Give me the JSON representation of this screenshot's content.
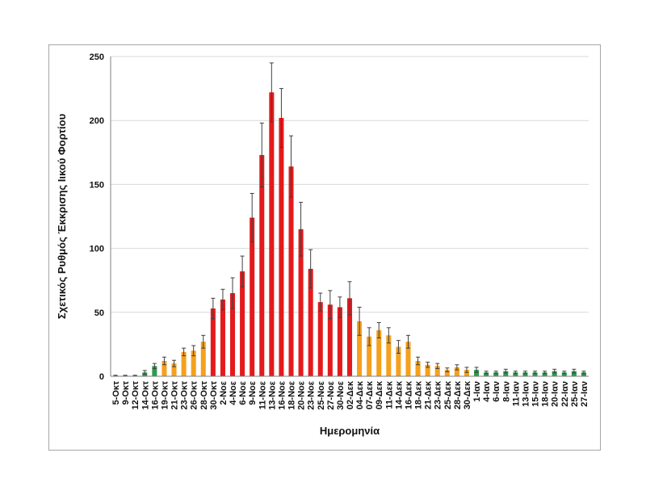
{
  "colors": {
    "low": "#2e9b4f",
    "medium": "#f5a01e",
    "high": "#e41a1c",
    "error": "#404040",
    "grid": "#d9d9d9"
  },
  "chart_data": {
    "type": "bar",
    "ylabel": "Σχετικός Ρυθμός Έκκρισης Ιικού Φορτίου",
    "xlabel": "Ημερομηνία",
    "ylim": [
      0,
      250
    ],
    "yticks": [
      0,
      50,
      100,
      150,
      200,
      250
    ],
    "grid": true,
    "legend": "none",
    "categories": [
      "5-Οκτ",
      "9-Οκτ",
      "12-Οκτ",
      "14-Οκτ",
      "16-Οκτ",
      "19-Οκτ",
      "21-Οκτ",
      "23-Οκτ",
      "26-Οκτ",
      "28-Οκτ",
      "30-Οκτ",
      "2-Νοε",
      "4-Νοε",
      "6-Νοε",
      "9-Νοε",
      "11-Νοε",
      "13-Νοε",
      "16-Νοε",
      "18-Νοε",
      "20-Νοε",
      "23-Νοε",
      "25-Νοε",
      "27-Νοε",
      "30-Νοε",
      "02-Δεκ",
      "04-Δεκ",
      "07-Δεκ",
      "09-Δεκ",
      "11-Δεκ",
      "14-Δεκ",
      "16-Δεκ",
      "18-Δεκ",
      "21-Δεκ",
      "23-Δεκ",
      "25-Δεκ",
      "28-Δεκ",
      "30-Δεκ",
      "1-Ιαν",
      "4-Ιαν",
      "6-Ιαν",
      "8-Ιαν",
      "11-Ιαν",
      "13-Ιαν",
      "15-Ιαν",
      "18-Ιαν",
      "20-Ιαν",
      "22-Ιαν",
      "25-Ιαν",
      "27-Ιαν"
    ],
    "values": [
      0.5,
      0.5,
      0.5,
      3,
      8,
      12,
      10,
      19,
      20,
      27,
      53,
      60,
      65,
      82,
      124,
      173,
      222,
      202,
      164,
      115,
      84,
      58,
      56,
      54,
      61,
      43,
      31,
      36,
      32,
      23,
      27,
      12,
      9,
      8,
      5,
      7,
      5,
      5,
      3,
      3,
      4,
      3,
      3,
      3,
      3,
      4,
      3,
      4,
      3
    ],
    "errors": [
      0.3,
      0.3,
      0.3,
      1.5,
      2,
      3,
      2.5,
      3,
      4,
      5,
      8,
      8,
      12,
      12,
      19,
      25,
      23,
      23,
      24,
      21,
      15,
      7,
      11,
      8,
      13,
      11,
      7,
      6,
      6,
      5,
      5,
      3,
      2,
      2,
      1.5,
      2,
      2,
      2,
      1,
      1,
      1.5,
      1,
      1,
      1,
      1,
      1.5,
      1,
      1.5,
      1
    ],
    "levels": [
      "low",
      "low",
      "low",
      "low",
      "low",
      "medium",
      "medium",
      "medium",
      "medium",
      "medium",
      "high",
      "high",
      "high",
      "high",
      "high",
      "high",
      "high",
      "high",
      "high",
      "high",
      "high",
      "high",
      "high",
      "high",
      "high",
      "medium",
      "medium",
      "medium",
      "medium",
      "medium",
      "medium",
      "medium",
      "medium",
      "medium",
      "medium",
      "medium",
      "medium",
      "low",
      "low",
      "low",
      "low",
      "low",
      "low",
      "low",
      "low",
      "low",
      "low",
      "low",
      "low"
    ]
  }
}
